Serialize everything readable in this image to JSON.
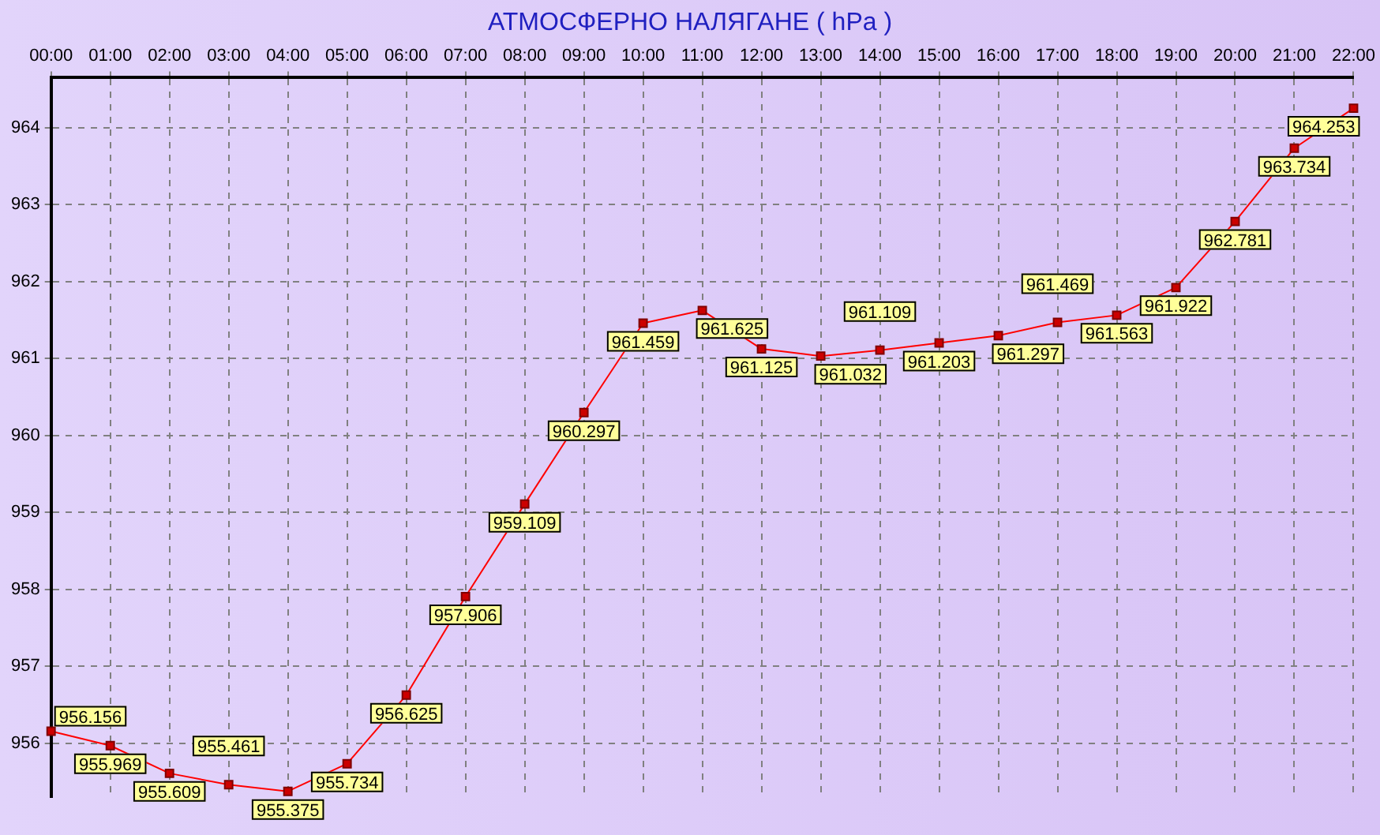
{
  "chart_data": {
    "type": "line",
    "title": "АТМОСФЕРНО НАЛЯГАНЕ  ( hPa )",
    "categories": [
      "00:00",
      "01:00",
      "02:00",
      "03:00",
      "04:00",
      "05:00",
      "06:00",
      "07:00",
      "08:00",
      "09:00",
      "10:00",
      "11:00",
      "12:00",
      "13:00",
      "14:00",
      "15:00",
      "16:00",
      "17:00",
      "18:00",
      "19:00",
      "20:00",
      "21:00",
      "22:00"
    ],
    "series": [
      {
        "color": "#ff0000",
        "values": [
          956.156,
          955.969,
          955.609,
          955.461,
          955.375,
          955.734,
          956.625,
          957.906,
          959.109,
          960.297,
          961.459,
          961.625,
          961.125,
          961.032,
          961.109,
          961.203,
          961.297,
          961.469,
          961.563,
          961.922,
          962.781,
          963.734,
          964.253
        ]
      }
    ],
    "ylim": [
      955.3,
      964.65
    ],
    "yticks": [
      956,
      957,
      958,
      959,
      960,
      961,
      962,
      963,
      964
    ],
    "grid": true,
    "legend": false,
    "marker": "square",
    "line_style": "solid",
    "data_labels": true
  }
}
